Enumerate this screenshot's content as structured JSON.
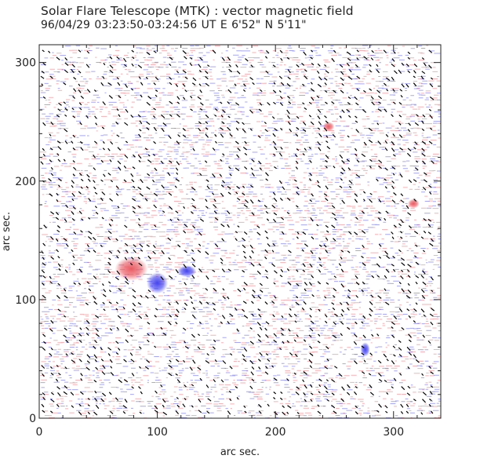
{
  "header": {
    "title": "Solar Flare Telescope (MTK) : vector magnetic field",
    "subtitle": "96/04/29  03:23:50-03:24:56 UT    E 6'52\"  N 5'11\""
  },
  "chart_data": {
    "type": "heatmap",
    "title": "Solar Flare Telescope (MTK) : vector magnetic field",
    "xlabel": "arc sec.",
    "ylabel": "arc sec.",
    "xlim": [
      0,
      340
    ],
    "ylim": [
      0,
      315
    ],
    "x_ticks": [
      0,
      100,
      200,
      300
    ],
    "y_ticks": [
      0,
      100,
      200,
      300
    ],
    "grid": false,
    "colors": {
      "positive": "#e8525a",
      "negative": "#3a3aee",
      "vector": "#000000"
    },
    "regions": [
      {
        "polarity": "positive",
        "x": 78,
        "y": 126,
        "rx": 14,
        "ry": 10
      },
      {
        "polarity": "negative",
        "x": 100,
        "y": 114,
        "rx": 9,
        "ry": 9
      },
      {
        "polarity": "negative",
        "x": 125,
        "y": 124,
        "rx": 8,
        "ry": 5
      },
      {
        "polarity": "positive",
        "x": 245,
        "y": 246,
        "rx": 5,
        "ry": 4
      },
      {
        "polarity": "negative",
        "x": 276,
        "y": 58,
        "rx": 4,
        "ry": 6
      },
      {
        "polarity": "positive",
        "x": 317,
        "y": 181,
        "rx": 5,
        "ry": 4
      }
    ]
  }
}
